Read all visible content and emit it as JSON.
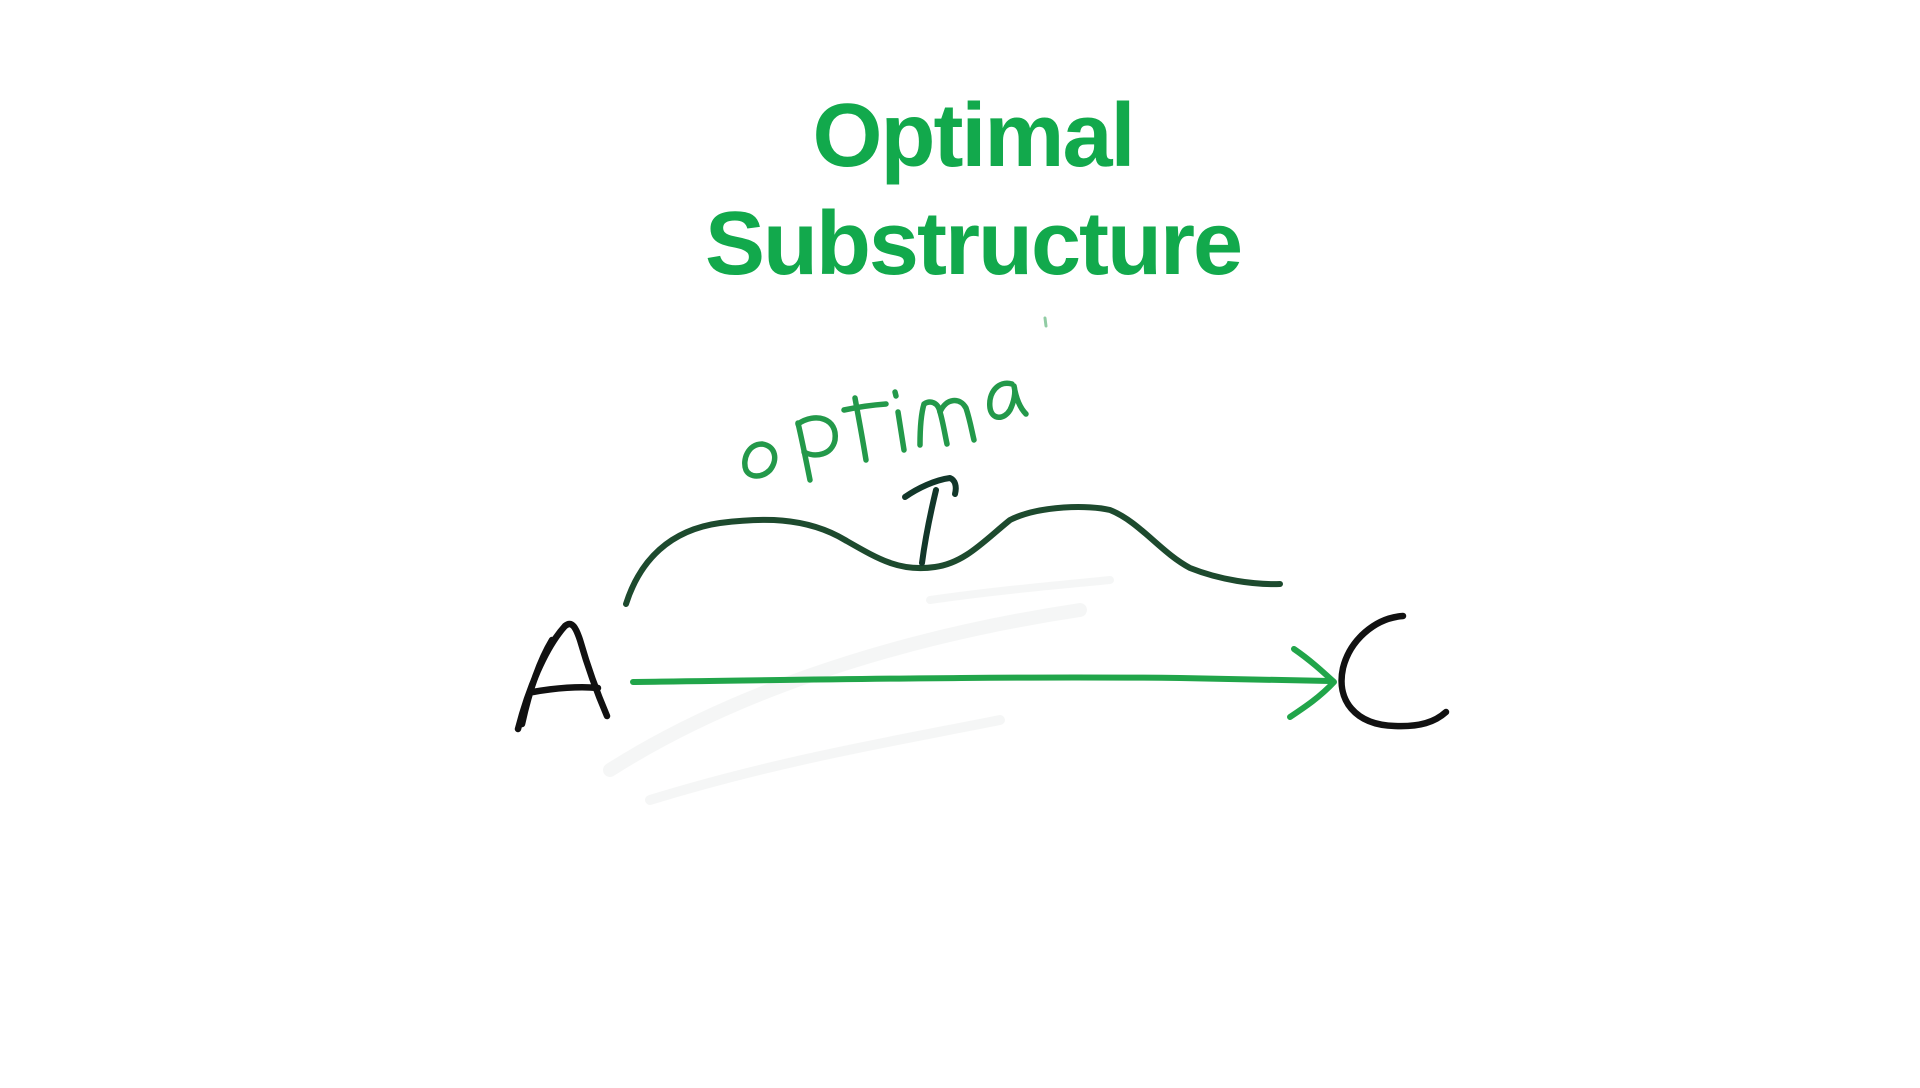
{
  "title": {
    "line1": "Optimal",
    "line2": "Substructure"
  },
  "diagram": {
    "start_node": "A",
    "end_node": "C",
    "handwritten_note": "optimal",
    "colors": {
      "title": "#12a94c",
      "arrow": "#21a54a",
      "curve": "#1d4a2e",
      "note": "#23994a",
      "letters": "#111111"
    }
  }
}
